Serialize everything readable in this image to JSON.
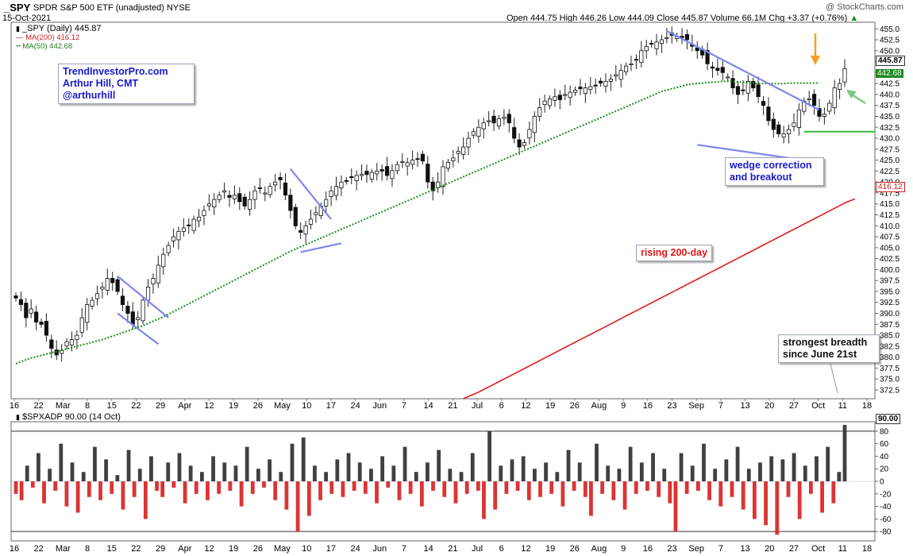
{
  "header": {
    "symbol": "_SPY",
    "description": "SPDR S&P 500 ETF (unadjusted)  NYSE",
    "date": "15-Oct-2021",
    "watermark": "@ StockCharts.com",
    "ohlc": "Open 444.75  High 446.26  Low 444.09  Close 445.87  Volume 66.1M  Chg +3.37 (+0.76%)",
    "chg_arrow": "▲"
  },
  "legend": {
    "price": "_SPY (Daily) 445.87",
    "ma200": "MA(200) 416.12",
    "ma50": "MA(50) 442.68",
    "ind": "$SPXADP 90.00 (14 Oct)"
  },
  "annotations": {
    "brand": [
      "TrendInvestorPro.com",
      "Arthur Hill, CMT",
      "@arthurhill"
    ],
    "wedge": [
      "wedge correction",
      "and breakout"
    ],
    "rising": "rising 200-day",
    "breadth": [
      "strongest breadth",
      "since June 21st"
    ]
  },
  "price_labels": {
    "last": "445.87",
    "ma50": "442.68",
    "ma200": "416.12",
    "ind": "90.00"
  },
  "colors": {
    "ma200": "#dd1a1a",
    "ma50": "#1f8a1f",
    "up_bar": "#404040",
    "down_bar": "#dd3333",
    "trend": "#7f86ee",
    "annotation_blue": "#1a1acc",
    "annotation_red": "#dd1a1a",
    "orange_arrow": "#f5a020",
    "green_arrow": "#7dc87d",
    "support_line": "#44bb44"
  },
  "chart_data": [
    {
      "type": "candlestick",
      "title": "_SPY SPDR S&P 500 ETF (unadjusted) NYSE",
      "y_ticks": [
        "372.5",
        "375.0",
        "377.5",
        "380.0",
        "382.5",
        "385.0",
        "387.5",
        "390.0",
        "392.5",
        "395.0",
        "397.5",
        "400.0",
        "402.5",
        "405.0",
        "407.5",
        "410.0",
        "412.5",
        "415.0",
        "417.5",
        "420.0",
        "422.5",
        "425.0",
        "427.5",
        "430.0",
        "432.5",
        "435.0",
        "437.5",
        "440.0",
        "442.5",
        "445.0",
        "447.5",
        "450.0",
        "452.5",
        "455.0"
      ],
      "ylim": [
        370.5,
        456.5
      ],
      "x_ticks": [
        "16",
        "22",
        "Mar",
        "8",
        "15",
        "22",
        "29",
        "Apr",
        "12",
        "19",
        "26",
        "May",
        "10",
        "17",
        "24",
        "Jun",
        "7",
        "14",
        "21",
        "Jul",
        "6",
        "12",
        "19",
        "26",
        "Aug",
        "9",
        "16",
        "23",
        "Sep",
        "7",
        "13",
        "20",
        "27",
        "Oct",
        "11",
        "18"
      ],
      "closes": [
        393.5,
        392,
        389,
        391,
        388,
        387.5,
        385,
        382,
        380.5,
        381.5,
        383.5,
        384,
        385,
        389,
        392,
        393,
        394.5,
        396,
        398,
        397,
        395,
        392,
        390,
        387.5,
        389,
        393,
        396,
        398,
        401,
        403.5,
        405.5,
        407.5,
        408.7,
        409.5,
        410,
        411.5,
        412,
        413.5,
        415,
        416,
        417,
        418,
        416.5,
        417,
        415.5,
        414.5,
        416,
        418,
        418.5,
        417.5,
        419,
        420,
        420.5,
        417,
        413.5,
        410,
        408.5,
        410,
        411.5,
        413,
        414.5,
        416,
        418,
        419,
        420,
        420.2,
        421,
        421.5,
        421.8,
        421.7,
        422.2,
        422.5,
        422.5,
        421.5,
        422.6,
        424,
        424.7,
        424.4,
        425,
        425.3,
        424.8,
        420,
        418,
        420,
        423.5,
        424.5,
        425.5,
        427,
        428,
        430,
        431.5,
        432.5,
        433.5,
        434,
        433.5,
        434.5,
        434.8,
        433.5,
        430,
        428,
        429,
        432,
        435,
        437,
        438.5,
        439,
        439.5,
        438.8,
        440,
        440.5,
        441,
        441.3,
        441.5,
        441.8,
        442,
        442.6,
        443,
        443.5,
        444.5,
        445.5,
        446.5,
        447,
        448,
        450,
        451,
        451.5,
        452,
        452.5,
        453,
        453.5,
        453.3,
        453,
        452.5,
        451,
        450,
        449,
        447,
        446,
        445.5,
        445,
        444,
        441.5,
        440,
        441,
        443,
        441.5,
        439.5,
        437.5,
        434,
        432,
        431,
        431,
        432,
        433.5,
        436.5,
        438.5,
        439,
        437.5,
        435,
        435.5,
        438,
        441.5,
        442.5,
        445.87
      ],
      "ma200_from_index": 88,
      "ma200": [
        370.5,
        371.0,
        371.5,
        372.0,
        372.6,
        373.2,
        373.8,
        374.4,
        375.0,
        375.6,
        376.2,
        376.8,
        377.4,
        378.0,
        378.6,
        379.2,
        379.8,
        380.4,
        381.0,
        381.6,
        382.2,
        382.8,
        383.4,
        384.0,
        384.6,
        385.2,
        385.8,
        386.4,
        387.0,
        387.6,
        388.2,
        388.8,
        389.4,
        390.0,
        390.6,
        391.2,
        391.8,
        392.4,
        393.0,
        393.6,
        394.2,
        394.8,
        395.4,
        396.0,
        396.6,
        397.2,
        397.8,
        398.4,
        399.0,
        399.6,
        400.2,
        400.8,
        401.4,
        402.0,
        402.6,
        403.2,
        403.8,
        404.4,
        405.0,
        405.6,
        406.2,
        406.8,
        407.4,
        408.0,
        408.6,
        409.2,
        409.8,
        410.4,
        411.0,
        411.6,
        412.2,
        412.8,
        413.4,
        414.0,
        414.6,
        415.2,
        415.7,
        416.12
      ],
      "ma50": [
        378.5,
        379.0,
        379.4,
        379.8,
        380.1,
        380.4,
        380.7,
        381.0,
        381.3,
        381.6,
        381.9,
        382.2,
        382.5,
        382.8,
        383.1,
        383.4,
        383.7,
        384.0,
        384.4,
        384.8,
        385.2,
        385.6,
        386.0,
        386.4,
        386.8,
        387.2,
        387.7,
        388.2,
        388.7,
        389.2,
        389.8,
        390.4,
        391.0,
        391.6,
        392.2,
        392.8,
        393.4,
        394.0,
        394.6,
        395.2,
        395.8,
        396.4,
        397.0,
        397.6,
        398.2,
        398.8,
        399.4,
        400.0,
        400.6,
        401.2,
        401.8,
        402.4,
        403.0,
        403.6,
        404.2,
        404.7,
        405.2,
        405.7,
        406.2,
        406.7,
        407.2,
        407.7,
        408.2,
        408.7,
        409.2,
        409.7,
        410.2,
        410.7,
        411.2,
        411.7,
        412.2,
        412.7,
        413.2,
        413.7,
        414.2,
        414.7,
        415.2,
        415.7,
        416.2,
        416.7,
        417.2,
        417.7,
        418.2,
        418.7,
        419.2,
        419.7,
        420.2,
        420.7,
        421.2,
        421.7,
        422.2,
        422.7,
        423.2,
        423.7,
        424.2,
        424.7,
        425.2,
        425.7,
        426.2,
        426.7,
        427.2,
        427.7,
        428.2,
        428.7,
        429.2,
        429.7,
        430.2,
        430.7,
        431.2,
        431.7,
        432.2,
        432.7,
        433.2,
        433.7,
        434.2,
        434.7,
        435.2,
        435.7,
        436.2,
        436.7,
        437.2,
        437.7,
        438.2,
        438.7,
        439.2,
        439.7,
        440.2,
        440.7,
        441.0,
        441.3,
        441.6,
        441.9,
        442.2,
        442.4,
        442.5,
        442.6,
        442.7,
        442.8,
        442.9,
        443.0,
        443.0,
        443.0,
        442.9,
        442.8,
        442.7,
        442.6,
        442.5,
        442.5,
        442.5,
        442.5,
        442.5,
        442.5,
        442.6,
        442.6,
        442.6,
        442.6,
        442.6,
        442.6,
        442.68
      ]
    },
    {
      "type": "bar",
      "title": "$SPXADP 90.00 (14 Oct)",
      "y_ticks": [
        "-80",
        "-60",
        "-40",
        "-20",
        "0",
        "20",
        "40",
        "60",
        "80"
      ],
      "ylim": [
        -95,
        95
      ],
      "reference_lines": [
        80,
        -80
      ],
      "values": [
        -20,
        -30,
        25,
        -10,
        45,
        -35,
        20,
        -15,
        60,
        -40,
        30,
        -50,
        15,
        -25,
        55,
        -30,
        35,
        -20,
        10,
        -45,
        50,
        -25,
        20,
        -60,
        40,
        -15,
        -25,
        30,
        -10,
        45,
        -35,
        25,
        -20,
        15,
        -30,
        40,
        -20,
        30,
        -15,
        25,
        -40,
        55,
        -20,
        20,
        -10,
        35,
        -30,
        15,
        -45,
        60,
        -80,
        70,
        -55,
        25,
        -30,
        15,
        -20,
        35,
        -25,
        45,
        -15,
        30,
        -20,
        20,
        -35,
        40,
        -10,
        25,
        -30,
        55,
        -20,
        15,
        -40,
        30,
        -15,
        50,
        -25,
        20,
        -35,
        15,
        -20,
        45,
        -15,
        -60,
        80,
        -45,
        25,
        -20,
        35,
        -15,
        40,
        -30,
        20,
        -25,
        30,
        -20,
        15,
        -40,
        50,
        -15,
        30,
        -25,
        -55,
        60,
        -20,
        25,
        -30,
        20,
        -45,
        55,
        -20,
        30,
        -15,
        45,
        -25,
        20,
        -35,
        -80,
        45,
        -20,
        25,
        -15,
        60,
        -30,
        20,
        -40,
        35,
        -25,
        55,
        -45,
        20,
        -60,
        30,
        -70,
        40,
        -85,
        35,
        -25,
        45,
        -60,
        25,
        -20,
        40,
        -50,
        55,
        -35,
        15,
        90
      ]
    }
  ]
}
